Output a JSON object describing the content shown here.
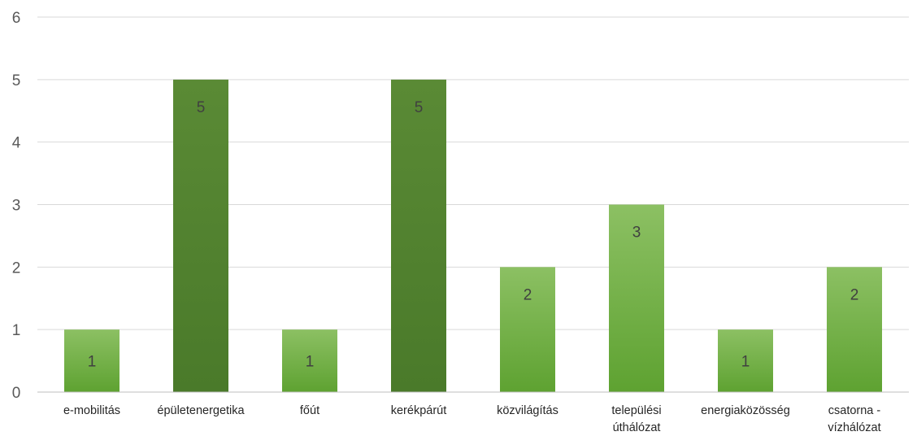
{
  "chart_data": {
    "type": "bar",
    "title": "",
    "xlabel": "",
    "ylabel": "",
    "categories": [
      [
        "e-mobilitás"
      ],
      [
        "épületenergetika"
      ],
      [
        "főút"
      ],
      [
        "kerékpárút"
      ],
      [
        "közvilágítás"
      ],
      [
        "települési",
        "úthálózat"
      ],
      [
        "energiaközösség"
      ],
      [
        "csatorna -",
        "vízhálózat"
      ]
    ],
    "values": [
      1,
      5,
      1,
      5,
      2,
      3,
      1,
      2
    ],
    "bar_colors": [
      "light",
      "dark",
      "light",
      "dark",
      "light",
      "light",
      "light",
      "light"
    ],
    "ylim": [
      0,
      6
    ],
    "yticks": [
      0,
      1,
      2,
      3,
      4,
      5,
      6
    ],
    "grid": true,
    "legend": "none",
    "data_labels": true
  },
  "colors": {
    "light_top": "#8cc063",
    "light_bottom": "#5ea231",
    "dark_top": "#5a8a35",
    "dark_bottom": "#4a7a2a",
    "grid": "#d9d9d9",
    "axis": "#bfbfbf"
  }
}
